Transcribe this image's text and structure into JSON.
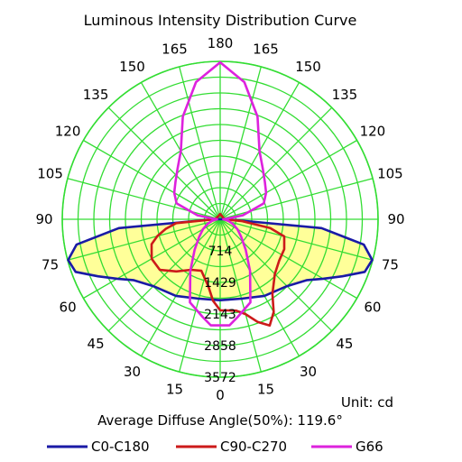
{
  "chart_data": {
    "type": "polar",
    "title": "Luminous Intensity Distribution Curve",
    "unit_label": "Unit: cd",
    "diffuse_angle_label": "Average Diffuse Angle(50%): 119.6°",
    "grid": true,
    "r_max": 3572,
    "radial_ticks": [
      "714",
      "1429",
      "2143",
      "2858",
      "3572"
    ],
    "radial_values": [
      714,
      1429,
      2143,
      2858,
      3572
    ],
    "angle_ticks": [
      {
        "label": "0",
        "deg": 0
      },
      {
        "label": "15",
        "deg": 15
      },
      {
        "label": "30",
        "deg": 30
      },
      {
        "label": "45",
        "deg": 45
      },
      {
        "label": "60",
        "deg": 60
      },
      {
        "label": "75",
        "deg": 75
      },
      {
        "label": "90",
        "deg": 90
      },
      {
        "label": "105",
        "deg": 105
      },
      {
        "label": "120",
        "deg": 120
      },
      {
        "label": "135",
        "deg": 135
      },
      {
        "label": "150",
        "deg": 150
      },
      {
        "label": "165",
        "deg": 165
      },
      {
        "label": "180",
        "deg": 180
      },
      {
        "label": "165",
        "deg": 195
      },
      {
        "label": "150",
        "deg": 210
      },
      {
        "label": "135",
        "deg": 225
      },
      {
        "label": "120",
        "deg": 240
      },
      {
        "label": "105",
        "deg": 255
      },
      {
        "label": "90",
        "deg": 270
      },
      {
        "label": "75",
        "deg": 285
      },
      {
        "label": "60",
        "deg": 300
      },
      {
        "label": "45",
        "deg": 315
      },
      {
        "label": "30",
        "deg": 330
      },
      {
        "label": "15",
        "deg": 345
      }
    ],
    "legend_position": "bottom",
    "colors": {
      "grid": "#33dd33",
      "fill": "#ffff99"
    },
    "series": [
      {
        "name": "C0-C180",
        "color": "#1a1aa6",
        "points": [
          [
            0,
            1830
          ],
          [
            15,
            1860
          ],
          [
            30,
            2000
          ],
          [
            45,
            2140
          ],
          [
            55,
            2400
          ],
          [
            60,
            2690
          ],
          [
            65,
            3050
          ],
          [
            70,
            3480
          ],
          [
            75,
            3560
          ],
          [
            80,
            3300
          ],
          [
            85,
            2300
          ],
          [
            90,
            150
          ],
          [
            270,
            150
          ],
          [
            275,
            2300
          ],
          [
            280,
            3300
          ],
          [
            285,
            3560
          ],
          [
            290,
            3480
          ],
          [
            295,
            3050
          ],
          [
            300,
            2690
          ],
          [
            305,
            2400
          ],
          [
            315,
            2140
          ],
          [
            330,
            2000
          ],
          [
            345,
            1860
          ]
        ]
      },
      {
        "name": "C90-C270",
        "color": "#cc1a1a",
        "points": [
          [
            0,
            2060
          ],
          [
            5,
            2070
          ],
          [
            10,
            2100
          ],
          [
            15,
            2220
          ],
          [
            20,
            2470
          ],
          [
            25,
            2650
          ],
          [
            30,
            2420
          ],
          [
            35,
            2060
          ],
          [
            45,
            1750
          ],
          [
            55,
            1630
          ],
          [
            65,
            1600
          ],
          [
            75,
            1500
          ],
          [
            80,
            1150
          ],
          [
            85,
            500
          ],
          [
            90,
            100
          ],
          [
            150,
            80
          ],
          [
            180,
            120
          ],
          [
            210,
            80
          ],
          [
            270,
            120
          ],
          [
            275,
            1000
          ],
          [
            280,
            1250
          ],
          [
            285,
            1470
          ],
          [
            290,
            1650
          ],
          [
            300,
            1790
          ],
          [
            310,
            1780
          ],
          [
            320,
            1540
          ],
          [
            330,
            1320
          ],
          [
            340,
            1240
          ],
          [
            350,
            1540
          ],
          [
            355,
            1850
          ]
        ]
      },
      {
        "name": "G66",
        "color": "#dd22dd",
        "points": [
          [
            0,
            2400
          ],
          [
            5,
            2410
          ],
          [
            10,
            2250
          ],
          [
            20,
            2000
          ],
          [
            30,
            1350
          ],
          [
            40,
            900
          ],
          [
            50,
            620
          ],
          [
            60,
            450
          ],
          [
            70,
            300
          ],
          [
            80,
            180
          ],
          [
            90,
            70
          ],
          [
            95,
            150
          ],
          [
            100,
            520
          ],
          [
            110,
            1050
          ],
          [
            120,
            1200
          ],
          [
            130,
            1320
          ],
          [
            140,
            1500
          ],
          [
            150,
            1780
          ],
          [
            160,
            2470
          ],
          [
            170,
            3150
          ],
          [
            180,
            3550
          ],
          [
            190,
            3150
          ],
          [
            200,
            2470
          ],
          [
            210,
            1780
          ],
          [
            220,
            1500
          ],
          [
            230,
            1320
          ],
          [
            240,
            1200
          ],
          [
            250,
            1050
          ],
          [
            260,
            520
          ],
          [
            265,
            150
          ],
          [
            270,
            70
          ],
          [
            280,
            180
          ],
          [
            290,
            300
          ],
          [
            300,
            450
          ],
          [
            310,
            620
          ],
          [
            320,
            900
          ],
          [
            330,
            1350
          ],
          [
            340,
            2000
          ],
          [
            350,
            2250
          ],
          [
            355,
            2410
          ]
        ]
      }
    ]
  }
}
